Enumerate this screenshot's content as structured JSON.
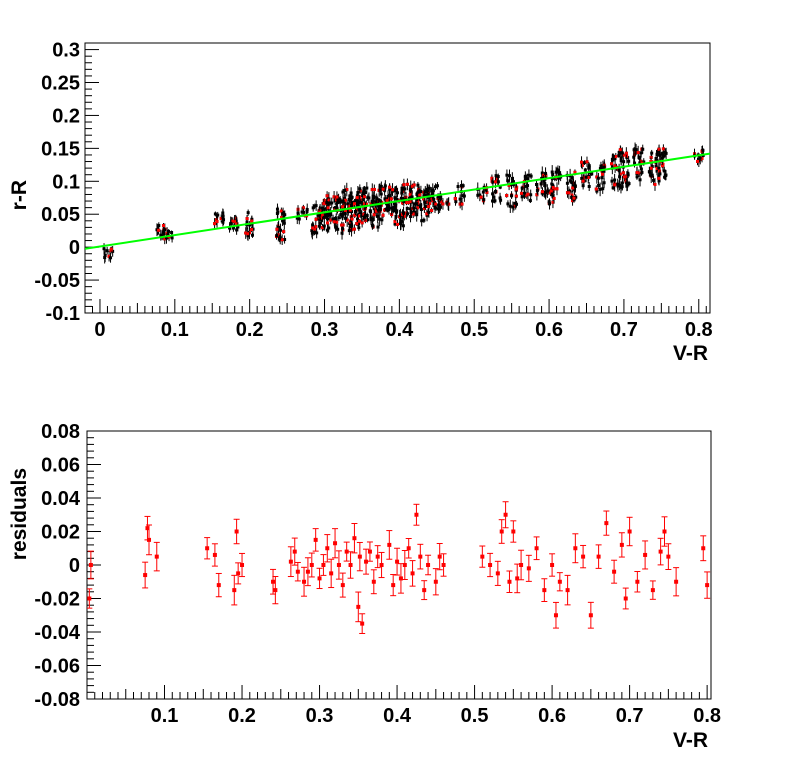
{
  "chart_data": [
    {
      "type": "scatter",
      "title": "",
      "xlabel": "V-R",
      "ylabel": "r-R",
      "xlim": [
        -0.02,
        0.815
      ],
      "ylim": [
        -0.1,
        0.31
      ],
      "x_ticks": [
        0,
        0.1,
        0.2,
        0.3,
        0.4,
        0.5,
        0.6,
        0.7,
        0.8
      ],
      "x_tick_labels": [
        "0",
        "0.1",
        "0.2",
        "0.3",
        "0.4",
        "0.5",
        "0.6",
        "0.7",
        "0.8"
      ],
      "y_ticks": [
        -0.1,
        -0.05,
        0,
        0.05,
        0.1,
        0.15,
        0.2,
        0.25,
        0.3
      ],
      "y_tick_labels": [
        "-0.1",
        "-0.05",
        "0",
        "0.05",
        "0.1",
        "0.15",
        "0.2",
        "0.25",
        "0.3"
      ],
      "grid": false,
      "legend": "none",
      "series": [
        {
          "role": "data",
          "marker_color": "#000000",
          "highlight_color": "#ff0000",
          "x": [
            0.01,
            0.08,
            0.09,
            0.16,
            0.18,
            0.2,
            0.24,
            0.27,
            0.29,
            0.3,
            0.31,
            0.32,
            0.33,
            0.34,
            0.35,
            0.36,
            0.37,
            0.38,
            0.39,
            0.4,
            0.41,
            0.42,
            0.43,
            0.44,
            0.45,
            0.46,
            0.48,
            0.51,
            0.53,
            0.55,
            0.57,
            0.59,
            0.6,
            0.61,
            0.63,
            0.65,
            0.67,
            0.69,
            0.7,
            0.72,
            0.74,
            0.75,
            0.8
          ],
          "y": [
            -0.01,
            0.028,
            0.02,
            0.04,
            0.035,
            0.035,
            0.035,
            0.05,
            0.045,
            0.05,
            0.055,
            0.05,
            0.06,
            0.055,
            0.065,
            0.06,
            0.06,
            0.07,
            0.065,
            0.06,
            0.075,
            0.07,
            0.065,
            0.07,
            0.075,
            0.07,
            0.08,
            0.08,
            0.09,
            0.085,
            0.09,
            0.095,
            0.085,
            0.1,
            0.095,
            0.11,
            0.105,
            0.115,
            0.12,
            0.125,
            0.12,
            0.125,
            0.135
          ],
          "spread": [
            0.01,
            0.012,
            0.01,
            0.012,
            0.012,
            0.018,
            0.025,
            0.012,
            0.025,
            0.025,
            0.025,
            0.03,
            0.028,
            0.03,
            0.03,
            0.03,
            0.03,
            0.025,
            0.028,
            0.028,
            0.025,
            0.025,
            0.025,
            0.02,
            0.02,
            0.012,
            0.015,
            0.012,
            0.02,
            0.025,
            0.02,
            0.02,
            0.02,
            0.02,
            0.025,
            0.02,
            0.02,
            0.025,
            0.03,
            0.025,
            0.025,
            0.025,
            0.015
          ]
        },
        {
          "role": "fit",
          "color": "#00ff00",
          "x": [
            -0.02,
            0.815
          ],
          "y": [
            -0.0025,
            0.142
          ]
        }
      ]
    },
    {
      "type": "scatter",
      "title": "",
      "xlabel": "V-R",
      "ylabel": "residuals",
      "xlim": [
        0.0,
        0.805
      ],
      "ylim": [
        -0.08,
        0.08
      ],
      "x_ticks": [
        0.1,
        0.2,
        0.3,
        0.4,
        0.5,
        0.6,
        0.7,
        0.8
      ],
      "x_tick_labels": [
        "0.1",
        "0.2",
        "0.3",
        "0.4",
        "0.5",
        "0.6",
        "0.7",
        "0.8"
      ],
      "y_ticks": [
        -0.08,
        -0.06,
        -0.04,
        -0.02,
        0,
        0.02,
        0.04,
        0.06,
        0.08
      ],
      "y_tick_labels": [
        "-0.08",
        "-0.06",
        "-0.04",
        "-0.02",
        "0",
        "0.02",
        "0.04",
        "0.06",
        "0.08"
      ],
      "grid": false,
      "legend": "none",
      "series": [
        {
          "role": "residuals",
          "color": "#ff0000",
          "x": [
            0.003,
            0.005,
            0.075,
            0.078,
            0.08,
            0.09,
            0.155,
            0.165,
            0.17,
            0.19,
            0.193,
            0.195,
            0.2,
            0.24,
            0.243,
            0.263,
            0.268,
            0.272,
            0.28,
            0.285,
            0.29,
            0.295,
            0.3,
            0.305,
            0.31,
            0.315,
            0.32,
            0.325,
            0.33,
            0.335,
            0.34,
            0.345,
            0.35,
            0.352,
            0.355,
            0.36,
            0.365,
            0.37,
            0.375,
            0.38,
            0.39,
            0.395,
            0.4,
            0.405,
            0.41,
            0.415,
            0.42,
            0.425,
            0.43,
            0.435,
            0.44,
            0.45,
            0.455,
            0.46,
            0.51,
            0.52,
            0.53,
            0.535,
            0.54,
            0.545,
            0.55,
            0.555,
            0.56,
            0.57,
            0.58,
            0.59,
            0.6,
            0.605,
            0.61,
            0.62,
            0.63,
            0.64,
            0.65,
            0.66,
            0.67,
            0.68,
            0.69,
            0.695,
            0.7,
            0.71,
            0.72,
            0.73,
            0.74,
            0.745,
            0.75,
            0.76,
            0.795,
            0.8
          ],
          "y": [
            -0.02,
            0.0,
            -0.006,
            0.022,
            0.015,
            0.005,
            0.01,
            0.006,
            -0.012,
            -0.015,
            0.02,
            -0.005,
            0.0,
            -0.01,
            -0.015,
            0.002,
            0.008,
            -0.004,
            -0.01,
            -0.004,
            0.0,
            0.015,
            -0.008,
            0.0,
            0.01,
            -0.005,
            0.013,
            0.0,
            -0.012,
            0.008,
            0.0,
            0.016,
            -0.025,
            0.005,
            -0.035,
            0.002,
            0.008,
            -0.01,
            0.005,
            0.0,
            0.012,
            -0.012,
            0.002,
            -0.008,
            0.0,
            0.01,
            -0.005,
            0.03,
            0.005,
            -0.015,
            0.0,
            -0.01,
            0.005,
            0.0,
            0.005,
            0.0,
            -0.005,
            0.02,
            0.03,
            -0.01,
            0.02,
            -0.008,
            0.0,
            -0.002,
            0.01,
            -0.015,
            0.0,
            -0.03,
            -0.01,
            -0.015,
            0.01,
            0.005,
            -0.03,
            0.005,
            0.025,
            -0.004,
            0.012,
            -0.02,
            0.02,
            -0.01,
            0.006,
            -0.015,
            0.008,
            0.02,
            0.005,
            -0.01,
            0.01,
            -0.012
          ]
        }
      ]
    }
  ]
}
